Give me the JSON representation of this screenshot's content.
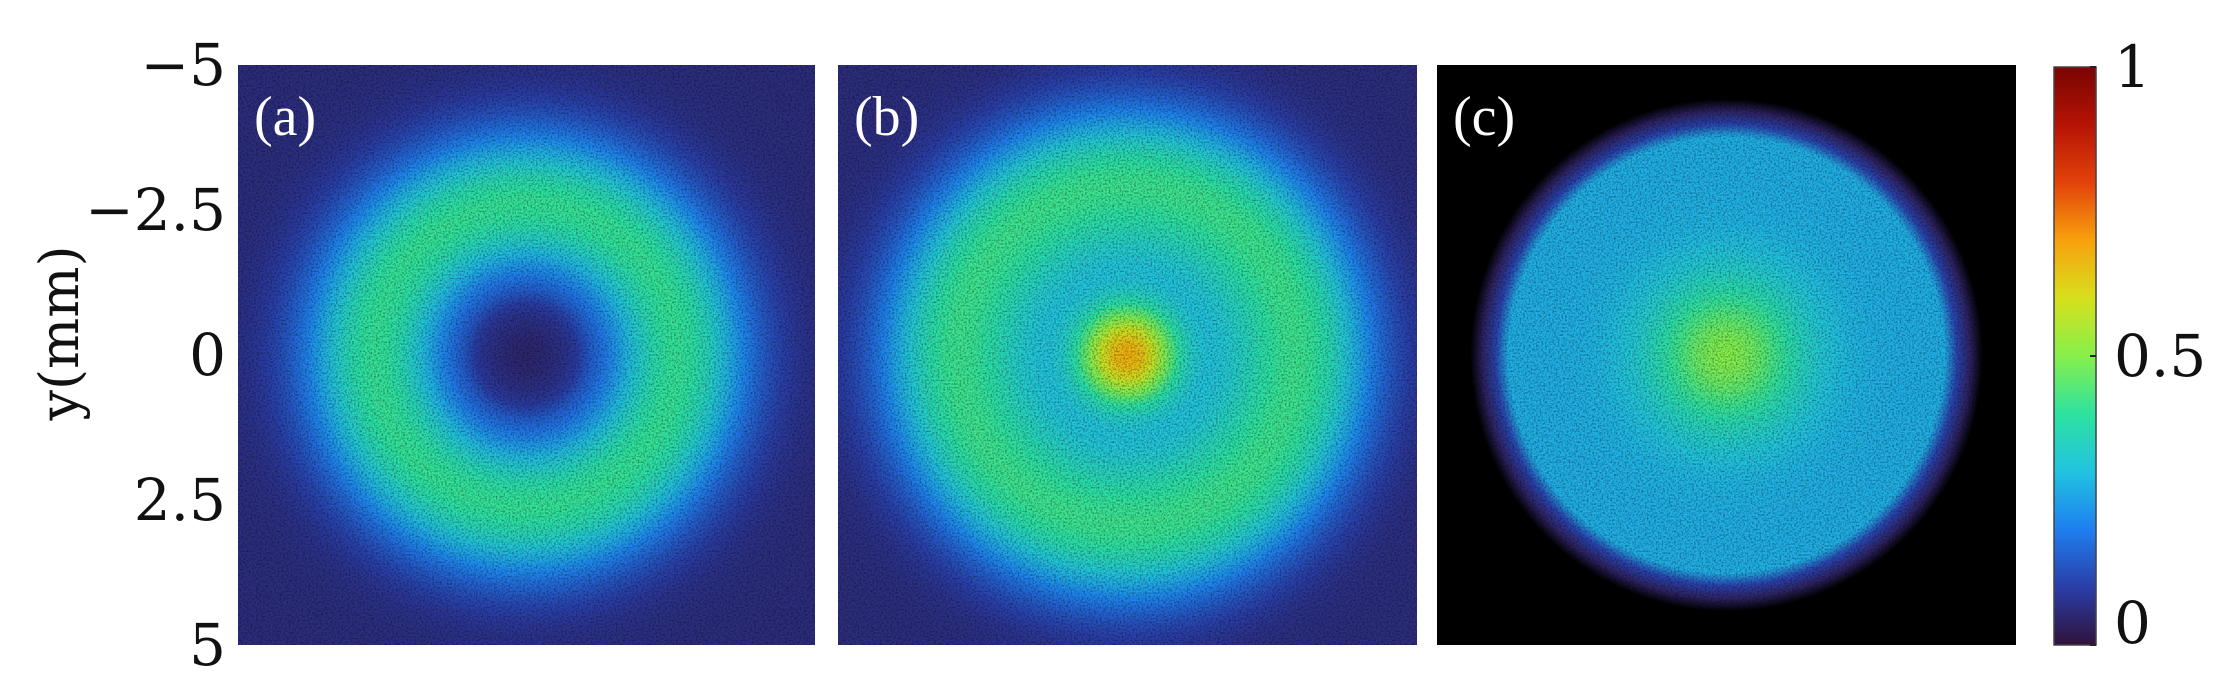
{
  "chart_data": {
    "type": "heatmap",
    "title": "",
    "ylabel": "y(mm)",
    "xlabel": "",
    "ylim": [
      5,
      -5
    ],
    "yticks": [
      {
        "value": -5,
        "label": "−5"
      },
      {
        "value": -2.5,
        "label": "−2.5"
      },
      {
        "value": 0,
        "label": "0"
      },
      {
        "value": 2.5,
        "label": "2.5"
      },
      {
        "value": 5,
        "label": "5"
      }
    ],
    "colorbar": {
      "range": [
        0,
        1
      ],
      "ticks": [
        {
          "value": 1,
          "label": "1"
        },
        {
          "value": 0.5,
          "label": "0.5"
        },
        {
          "value": 0,
          "label": "0"
        }
      ],
      "colormap": "jet",
      "colors": [
        "#30123b",
        "#2a3ea8",
        "#1e7ff0",
        "#21c3e0",
        "#2de2a0",
        "#86f04a",
        "#d7e01c",
        "#f8a10d",
        "#e3420a",
        "#b51304",
        "#7a0403"
      ]
    },
    "panels": [
      {
        "label": "(a)",
        "profile": "ring",
        "ring_radius_mm": 2.6,
        "ring_width_mm": 1.5,
        "peak_intensity": 0.35
      },
      {
        "label": "(b)",
        "profile": "center+ring",
        "center_peak_intensity": 0.6,
        "ring_radius_mm": 3.2,
        "ring_width_mm": 1.4,
        "ring_intensity": 0.3
      },
      {
        "label": "(c)",
        "profile": "flat-top",
        "radius_mm": 3.8,
        "peak_intensity": 0.5
      }
    ]
  }
}
